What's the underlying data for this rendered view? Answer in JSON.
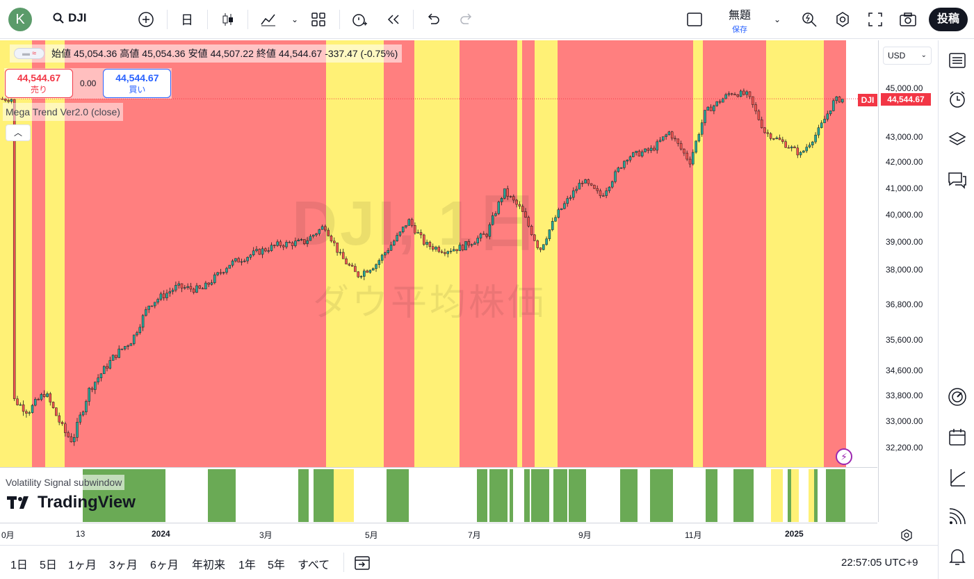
{
  "header": {
    "avatar_letter": "K",
    "symbol": "DJI",
    "interval": "日",
    "chart_title": "無題",
    "save_label": "保存",
    "post_label": "投稿"
  },
  "legend": {
    "open_label": "始値",
    "open": "45,054.36",
    "high_label": "高値",
    "high": "45,054.36",
    "low_label": "安値",
    "low": "44,507.22",
    "close_label": "終値",
    "close": "44,544.67",
    "change": "-337.47 (-0.75%)",
    "sell_price": "44,544.67",
    "sell_label": "売り",
    "buy_price": "44,544.67",
    "buy_label": "買い",
    "spread": "0.00",
    "indicator": "Mega Trend Ver2.0 (close)",
    "pill": "≈"
  },
  "subwindow": {
    "label": "Volatility Signal subwindow",
    "logo": "TradingView"
  },
  "price_axis": {
    "currency": "USD",
    "current_symbol": "DJI",
    "current_price": "44,544.67",
    "ticks": [
      "45,000.00",
      "43,000.00",
      "42,000.00",
      "41,000.00",
      "40,000.00",
      "39,000.00",
      "38,000.00",
      "36,800.00",
      "35,600.00",
      "34,600.00",
      "33,800.00",
      "33,000.00",
      "32,200.00"
    ]
  },
  "time_axis": {
    "labels": [
      "0月",
      "13",
      "2024",
      "3月",
      "5月",
      "7月",
      "9月",
      "11月",
      "2025"
    ]
  },
  "bottom_bar": {
    "ranges": [
      "1日",
      "5日",
      "1ヶ月",
      "3ヶ月",
      "6ヶ月",
      "年初来",
      "1年",
      "5年",
      "すべて"
    ],
    "clock": "22:57:05 UTC+9"
  },
  "watermark": {
    "line1": "DJI, 1日",
    "line2": "ダウ平均株価"
  },
  "colors": {
    "red_zone": "#ff7f7f",
    "yellow_zone": "#fff176",
    "signal_green": "#6aaa55",
    "signal_yellow": "#fff176",
    "candle_up": "#26a69a",
    "candle_down": "#ef5350"
  },
  "chart_data": {
    "type": "candlestick",
    "ylim": [
      31900,
      45500
    ],
    "series": [
      {
        "date": "2023-10-01",
        "value": 33700
      },
      {
        "date": "2023-10-10",
        "value": 33300
      },
      {
        "date": "2023-10-20",
        "value": 33900
      },
      {
        "date": "2023-10-31",
        "value": 32700
      },
      {
        "date": "2023-11-05",
        "value": 32400
      },
      {
        "date": "2023-11-15",
        "value": 34000
      },
      {
        "date": "2023-11-30",
        "value": 35100
      },
      {
        "date": "2023-12-10",
        "value": 35600
      },
      {
        "date": "2023-12-20",
        "value": 36800
      },
      {
        "date": "2024-01-05",
        "value": 37400
      },
      {
        "date": "2024-01-20",
        "value": 37300
      },
      {
        "date": "2024-02-05",
        "value": 38200
      },
      {
        "date": "2024-02-20",
        "value": 38600
      },
      {
        "date": "2024-03-05",
        "value": 38900
      },
      {
        "date": "2024-03-20",
        "value": 39000
      },
      {
        "date": "2024-04-01",
        "value": 39600
      },
      {
        "date": "2024-04-10",
        "value": 38500
      },
      {
        "date": "2024-04-20",
        "value": 37800
      },
      {
        "date": "2024-05-01",
        "value": 38200
      },
      {
        "date": "2024-05-15",
        "value": 39300
      },
      {
        "date": "2024-05-20",
        "value": 39800
      },
      {
        "date": "2024-05-30",
        "value": 38900
      },
      {
        "date": "2024-06-10",
        "value": 38700
      },
      {
        "date": "2024-06-20",
        "value": 38800
      },
      {
        "date": "2024-07-05",
        "value": 39300
      },
      {
        "date": "2024-07-15",
        "value": 40900
      },
      {
        "date": "2024-07-25",
        "value": 40200
      },
      {
        "date": "2024-08-05",
        "value": 38700
      },
      {
        "date": "2024-08-15",
        "value": 40000
      },
      {
        "date": "2024-08-30",
        "value": 41300
      },
      {
        "date": "2024-09-10",
        "value": 40700
      },
      {
        "date": "2024-09-25",
        "value": 42200
      },
      {
        "date": "2024-10-10",
        "value": 42500
      },
      {
        "date": "2024-10-20",
        "value": 43200
      },
      {
        "date": "2024-11-01",
        "value": 42000
      },
      {
        "date": "2024-11-10",
        "value": 44000
      },
      {
        "date": "2024-11-25",
        "value": 44800
      },
      {
        "date": "2024-12-05",
        "value": 44700
      },
      {
        "date": "2024-12-15",
        "value": 43200
      },
      {
        "date": "2024-12-25",
        "value": 42800
      },
      {
        "date": "2025-01-05",
        "value": 42300
      },
      {
        "date": "2025-01-15",
        "value": 43200
      },
      {
        "date": "2025-01-25",
        "value": 44500
      },
      {
        "date": "2025-01-31",
        "value": 44545
      }
    ]
  }
}
